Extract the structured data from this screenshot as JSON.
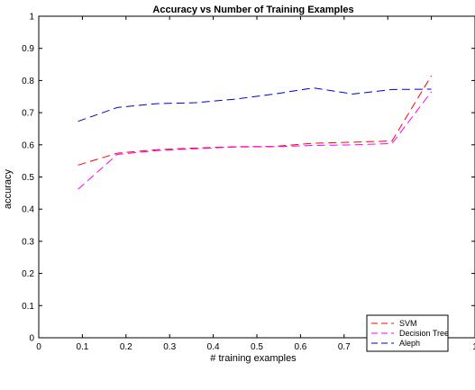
{
  "chart_data": {
    "type": "line",
    "title": "Accuracy vs Number of Training Examples",
    "xlabel": "# training examples",
    "ylabel": "accuracy",
    "xlim": [
      0,
      1
    ],
    "ylim": [
      0,
      1
    ],
    "xticks": [
      0,
      0.1,
      0.2,
      0.3,
      0.4,
      0.5,
      0.6,
      0.7,
      0.8,
      0.9,
      1
    ],
    "xtick_labels": [
      "0",
      "0.1",
      "0.2",
      "0.3",
      "0.4",
      "0.5",
      "0.6",
      "0.7",
      "0.8",
      "0.9",
      "1"
    ],
    "yticks": [
      0,
      0.1,
      0.2,
      0.3,
      0.4,
      0.5,
      0.6,
      0.7,
      0.8,
      0.9,
      1
    ],
    "ytick_labels": [
      "0",
      "0.1",
      "0.2",
      "0.3",
      "0.4",
      "0.5",
      "0.6",
      "0.7",
      "0.8",
      "0.9",
      "1"
    ],
    "grid": false,
    "legend_position": "bottom-right",
    "series": [
      {
        "name": "SVM",
        "color": "#ff0000",
        "x": [
          0.09,
          0.18,
          0.27,
          0.36,
          0.45,
          0.54,
          0.63,
          0.72,
          0.81,
          0.9
        ],
        "y": [
          0.537,
          0.574,
          0.585,
          0.59,
          0.594,
          0.595,
          0.605,
          0.608,
          0.612,
          0.815
        ]
      },
      {
        "name": "Decision Tree",
        "color": "#ff00ff",
        "x": [
          0.09,
          0.18,
          0.27,
          0.36,
          0.45,
          0.54,
          0.63,
          0.72,
          0.81,
          0.9
        ],
        "y": [
          0.462,
          0.57,
          0.582,
          0.588,
          0.593,
          0.594,
          0.598,
          0.6,
          0.604,
          0.765
        ]
      },
      {
        "name": "Aleph",
        "color": "#0000cc",
        "x": [
          0.09,
          0.18,
          0.27,
          0.36,
          0.45,
          0.54,
          0.63,
          0.72,
          0.81,
          0.9
        ],
        "y": [
          0.673,
          0.716,
          0.728,
          0.731,
          0.742,
          0.758,
          0.777,
          0.758,
          0.772,
          0.773
        ]
      }
    ]
  }
}
